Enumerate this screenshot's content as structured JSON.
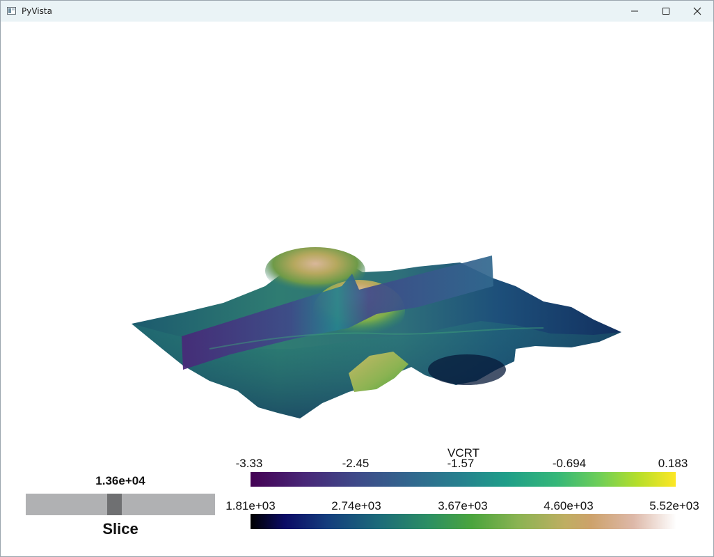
{
  "window": {
    "title": "PyVista"
  },
  "slider": {
    "value_label": "1.36e+04",
    "title": "Slice",
    "position_fraction": 0.45
  },
  "colorbars": [
    {
      "title": "VCRT",
      "ticks": [
        "-3.33",
        "-2.45",
        "-1.57",
        "-0.694",
        "0.183"
      ],
      "colormap": "viridis"
    },
    {
      "title": "",
      "ticks": [
        "1.81e+03",
        "2.74e+03",
        "3.67e+03",
        "4.60e+03",
        "5.52e+03"
      ],
      "colormap": "gist_earth"
    }
  ],
  "colors": {
    "background": "#ffffff",
    "titlebar": "#eaf3f6",
    "slider_track": "#b0b1b3",
    "slider_handle": "#6f7072"
  }
}
